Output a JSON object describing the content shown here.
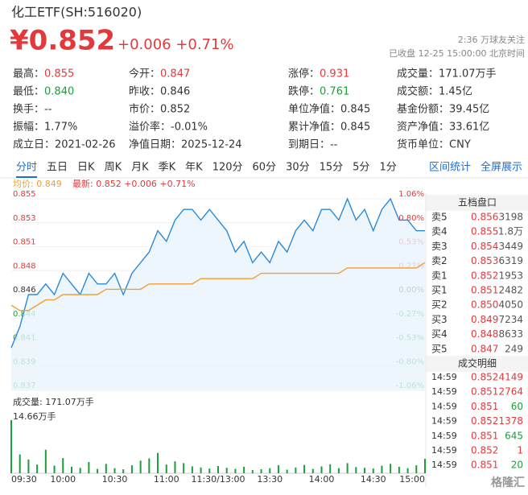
{
  "header": {
    "title": "化工ETF(SH:516020)",
    "price": "¥0.852",
    "change": "+0.006 +0.71%",
    "followers": "2:36 万球友关注",
    "status": "已收盘 12-25 15:00:00 北京时间"
  },
  "stats": [
    [
      {
        "label": "最高：",
        "value": "0.855",
        "color": "#e4393c"
      },
      {
        "label": "今开：",
        "value": "0.847",
        "color": "#e4393c"
      },
      {
        "label": "涨停：",
        "value": "0.931",
        "color": "#e4393c"
      },
      {
        "label": "成交量：",
        "value": "171.07万手",
        "color": "#333333"
      }
    ],
    [
      {
        "label": "最低：",
        "value": "0.840",
        "color": "#1b9e3b"
      },
      {
        "label": "昨收：",
        "value": "0.846",
        "color": "#333333"
      },
      {
        "label": "跌停：",
        "value": "0.761",
        "color": "#1b9e3b"
      },
      {
        "label": "成交额：",
        "value": "1.45亿",
        "color": "#333333"
      }
    ],
    [
      {
        "label": "换手：",
        "value": "--",
        "color": "#333333"
      },
      {
        "label": "市价：",
        "value": "0.852",
        "color": "#333333"
      },
      {
        "label": "单位净值：",
        "value": "0.845",
        "color": "#333333"
      },
      {
        "label": "基金份额：",
        "value": "39.45亿",
        "color": "#333333"
      }
    ],
    [
      {
        "label": "振幅：",
        "value": "1.77%",
        "color": "#333333"
      },
      {
        "label": "溢价率：",
        "value": "-0.01%",
        "color": "#333333"
      },
      {
        "label": "累计净值：",
        "value": "0.845",
        "color": "#333333"
      },
      {
        "label": "资产净值：",
        "value": "33.61亿",
        "color": "#333333"
      }
    ],
    [
      {
        "label": "成立日：",
        "value": "2021-02-26",
        "color": "#333333"
      },
      {
        "label": "净值日期：",
        "value": "2025-12-24",
        "color": "#333333"
      },
      {
        "label": "到期日：",
        "value": "--",
        "color": "#333333"
      },
      {
        "label": "货币单位：",
        "value": "CNY",
        "color": "#333333"
      }
    ]
  ],
  "tabs": [
    "分时",
    "五日",
    "日K",
    "周K",
    "月K",
    "季K",
    "年K",
    "120分",
    "60分",
    "30分",
    "15分",
    "5分",
    "1分"
  ],
  "tabs_right": [
    "区间统计",
    "全屏展示"
  ],
  "chart_data": {
    "type": "line",
    "legend_avg": "均价: 0.849",
    "legend_latest": "最新: 0.852 +0.006 +0.71%",
    "x": [
      0,
      5,
      10,
      15,
      20,
      25,
      30,
      35,
      40,
      45,
      50,
      55,
      60,
      65,
      70,
      75,
      80,
      85,
      90,
      95,
      100,
      105,
      110,
      115,
      120,
      125,
      130,
      135,
      140,
      145,
      150,
      155,
      160,
      165,
      170,
      175,
      180,
      185,
      190,
      195,
      200,
      205,
      210,
      215,
      220,
      225,
      230,
      235,
      240
    ],
    "xlim": [
      0,
      240
    ],
    "xticks": [
      {
        "value": 0,
        "label": "09:30"
      },
      {
        "value": 30,
        "label": "10:00"
      },
      {
        "value": 60,
        "label": "10:30"
      },
      {
        "value": 90,
        "label": "11:00"
      },
      {
        "value": 120,
        "label": "11:30/13:00"
      },
      {
        "value": 150,
        "label": "13:30"
      },
      {
        "value": 180,
        "label": "14:00"
      },
      {
        "value": 210,
        "label": "14:30"
      },
      {
        "value": 240,
        "label": "15:00"
      }
    ],
    "series": [
      {
        "name": "最新",
        "color": "#2a8ad8",
        "values": [
          0.841,
          0.843,
          0.846,
          0.846,
          0.847,
          0.846,
          0.848,
          0.847,
          0.846,
          0.848,
          0.847,
          0.847,
          0.848,
          0.846,
          0.848,
          0.849,
          0.85,
          0.852,
          0.851,
          0.853,
          0.854,
          0.854,
          0.853,
          0.854,
          0.853,
          0.852,
          0.85,
          0.851,
          0.849,
          0.85,
          0.849,
          0.851,
          0.85,
          0.852,
          0.853,
          0.852,
          0.854,
          0.854,
          0.853,
          0.855,
          0.853,
          0.854,
          0.852,
          0.854,
          0.855,
          0.853,
          0.853,
          0.852,
          0.852
        ]
      },
      {
        "name": "均价",
        "color": "#f0a030",
        "values": [
          0.845,
          0.8445,
          0.8445,
          0.845,
          0.8455,
          0.8455,
          0.846,
          0.846,
          0.846,
          0.846,
          0.846,
          0.8465,
          0.8465,
          0.8465,
          0.8465,
          0.8465,
          0.847,
          0.847,
          0.847,
          0.847,
          0.847,
          0.847,
          0.8475,
          0.8475,
          0.8475,
          0.8475,
          0.8475,
          0.8475,
          0.8475,
          0.848,
          0.848,
          0.848,
          0.848,
          0.848,
          0.848,
          0.848,
          0.848,
          0.848,
          0.848,
          0.8485,
          0.8485,
          0.8485,
          0.8485,
          0.8485,
          0.8485,
          0.8485,
          0.8485,
          0.8485,
          0.849
        ]
      }
    ],
    "ylim": [
      0.837,
      0.855
    ],
    "yticks": [
      {
        "value": 0.837,
        "label": "0.837"
      },
      {
        "value": 0.83925,
        "label": "0.839"
      },
      {
        "value": 0.8415,
        "label": "0.841"
      },
      {
        "value": 0.84375,
        "label": "0.844"
      },
      {
        "value": 0.846,
        "label": "0.846"
      },
      {
        "value": 0.84825,
        "label": "0.848"
      },
      {
        "value": 0.8505,
        "label": "0.851"
      },
      {
        "value": 0.85275,
        "label": "0.853"
      },
      {
        "value": 0.855,
        "label": "0.855"
      }
    ],
    "y2lim": [
      -1.06,
      1.06
    ],
    "y2ticks": [
      {
        "value": -1.06,
        "label": "-1.06%"
      },
      {
        "value": -0.795,
        "label": "-0.80%"
      },
      {
        "value": -0.53,
        "label": "-0.53%"
      },
      {
        "value": -0.265,
        "label": "-0.27%"
      },
      {
        "value": 0,
        "label": "0.00%"
      },
      {
        "value": 0.265,
        "label": "0.27%"
      },
      {
        "value": 0.53,
        "label": "0.53%"
      },
      {
        "value": 0.795,
        "label": "0.80%"
      },
      {
        "value": 1.06,
        "label": "1.06%"
      }
    ],
    "volume": {
      "label": "成交量: 171.07万手",
      "color": "#1b9e3b",
      "ylim": [
        0,
        14.66
      ],
      "yticks": [
        {
          "value": 14.66,
          "label": "14.66万手"
        }
      ],
      "values": [
        14.66,
        5.2,
        3.8,
        2.4,
        6.5,
        2.1,
        4.2,
        1.8,
        1.5,
        3.1,
        1.2,
        2.6,
        1.4,
        1.1,
        2.2,
        3.5,
        4.1,
        5.6,
        2.4,
        3.3,
        2.8,
        1.9,
        1.6,
        1.3,
        2.0,
        1.5,
        1.2,
        1.8,
        0.9,
        1.1,
        1.4,
        2.2,
        1.0,
        1.6,
        2.3,
        1.2,
        1.9,
        2.5,
        1.4,
        2.8,
        1.7,
        1.5,
        1.3,
        2.1,
        2.6,
        1.8,
        1.4,
        2.2,
        4.0
      ]
    }
  },
  "order_book": {
    "title": "五档盘口",
    "price_color": "#e4393c",
    "rows": [
      [
        "卖5",
        "0.856",
        "3198"
      ],
      [
        "卖4",
        "0.855",
        "1.8万"
      ],
      [
        "卖3",
        "0.854",
        "3449"
      ],
      [
        "卖2",
        "0.853",
        "6319"
      ],
      [
        "卖1",
        "0.852",
        "1953"
      ],
      [
        "买1",
        "0.851",
        "2482"
      ],
      [
        "买2",
        "0.850",
        "4050"
      ],
      [
        "买3",
        "0.849",
        "7234"
      ],
      [
        "买4",
        "0.848",
        "8633"
      ],
      [
        "买5",
        "0.847",
        "249"
      ]
    ]
  },
  "trades": {
    "title": "成交明细",
    "price_color": "#e4393c",
    "rows": [
      {
        "cells": [
          "14:59",
          "0.852",
          "4149"
        ],
        "color": "#e4393c"
      },
      {
        "cells": [
          "14:59",
          "0.851",
          "2764"
        ],
        "color": "#e4393c"
      },
      {
        "cells": [
          "14:59",
          "0.851",
          "60"
        ],
        "color": "#1b9e3b"
      },
      {
        "cells": [
          "14:59",
          "0.852",
          "1378"
        ],
        "color": "#e4393c"
      },
      {
        "cells": [
          "14:59",
          "0.851",
          "645"
        ],
        "color": "#1b9e3b"
      },
      {
        "cells": [
          "14:59",
          "0.852",
          "1"
        ],
        "color": "#e4393c"
      },
      {
        "cells": [
          "14:59",
          "0.851",
          "20"
        ],
        "color": "#1b9e3b"
      }
    ]
  },
  "watermark": "格隆汇"
}
